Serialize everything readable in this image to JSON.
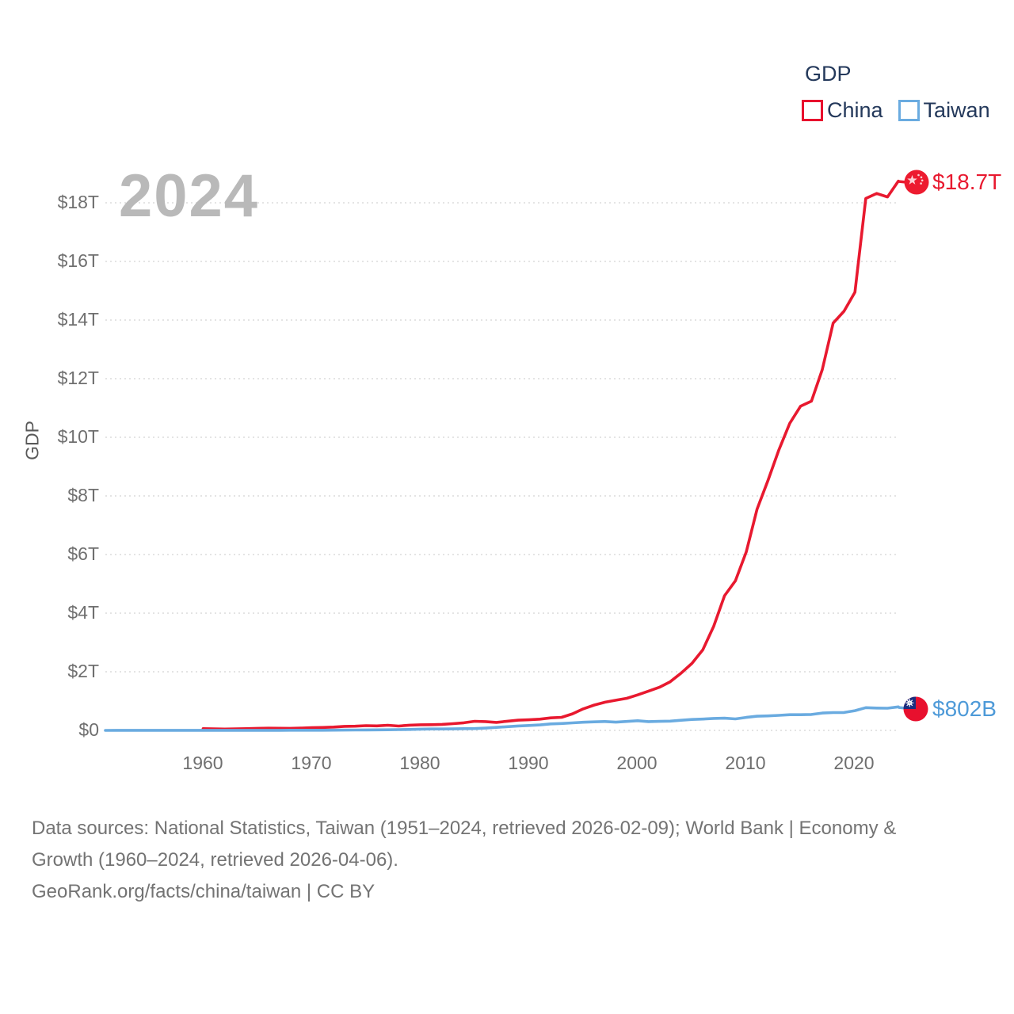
{
  "legend": {
    "title": "GDP",
    "items": [
      {
        "label": "China",
        "color": "#e8102d"
      },
      {
        "label": "Taiwan",
        "color": "#6aabe0"
      }
    ]
  },
  "watermark_year": "2024",
  "y_axis_title": "GDP",
  "footer": {
    "line1": "Data sources: National Statistics, Taiwan (1951–2024, retrieved 2026-02-09); World Bank | Economy &",
    "line2": "Growth (1960–2024, retrieved 2026-04-06).",
    "line3": "GeoRank.org/facts/china/taiwan | CC BY"
  },
  "chart_data": {
    "type": "line",
    "title": "GDP",
    "xlabel": "",
    "ylabel": "GDP",
    "grid": true,
    "legend_position": "top-right",
    "x_range_years": [
      1951,
      2024
    ],
    "y_range_usd_trillions": [
      0,
      18
    ],
    "y_tick_labels": [
      "$18T",
      "$16T",
      "$14T",
      "$12T",
      "$10T",
      "$8T",
      "$6T",
      "$4T",
      "$2T",
      "$0"
    ],
    "y_tick_values": [
      18,
      16,
      14,
      12,
      10,
      8,
      6,
      4,
      2,
      0
    ],
    "x_tick_labels": [
      "1960",
      "1970",
      "1980",
      "1990",
      "2000",
      "2010",
      "2020"
    ],
    "x_tick_values": [
      1960,
      1970,
      1980,
      1990,
      2000,
      2010,
      2020
    ],
    "series": [
      {
        "name": "China",
        "color": "#e8192f",
        "label_color": "#e8192f",
        "flag": "china-flag-icon",
        "end_label": "$18.7T",
        "start_year": 1960,
        "values_usd_trillions": [
          0.0597,
          0.0501,
          0.0472,
          0.0507,
          0.0597,
          0.0702,
          0.0759,
          0.0723,
          0.0704,
          0.0793,
          0.0926,
          0.099,
          0.1132,
          0.1386,
          0.1442,
          0.1634,
          0.1541,
          0.1749,
          0.1495,
          0.1783,
          0.1911,
          0.1959,
          0.205,
          0.2306,
          0.2599,
          0.3095,
          0.3009,
          0.2727,
          0.3123,
          0.3478,
          0.3609,
          0.3834,
          0.4269,
          0.4448,
          0.5642,
          0.7345,
          0.8637,
          0.9616,
          1.0294,
          1.094,
          1.2113,
          1.3394,
          1.4705,
          1.6602,
          1.9553,
          2.286,
          2.7522,
          3.5503,
          4.5943,
          5.1017,
          6.0871,
          7.5515,
          8.5323,
          9.5704,
          10.4756,
          11.0616,
          11.2333,
          12.3104,
          13.8948,
          14.2999,
          14.95,
          18.15,
          18.32,
          18.2,
          18.74
        ]
      },
      {
        "name": "Taiwan",
        "color": "#6aabe0",
        "label_color": "#4e9ad8",
        "flag": "taiwan-flag-icon",
        "end_label": "$802B",
        "start_year": 1951,
        "values_usd_trillions": [
          0.0012,
          0.0017,
          0.0018,
          0.0018,
          0.0019,
          0.0019,
          0.0021,
          0.0021,
          0.0021,
          0.0017,
          0.0019,
          0.002,
          0.0023,
          0.0026,
          0.0029,
          0.0032,
          0.0037,
          0.0043,
          0.005,
          0.0057,
          0.0067,
          0.008,
          0.0108,
          0.0146,
          0.0155,
          0.0185,
          0.0217,
          0.0268,
          0.0332,
          0.0423,
          0.0487,
          0.0486,
          0.0524,
          0.0598,
          0.0634,
          0.0773,
          0.1036,
          0.1262,
          0.1526,
          0.1666,
          0.1871,
          0.2229,
          0.2351,
          0.2562,
          0.2791,
          0.2925,
          0.3033,
          0.2802,
          0.3041,
          0.3307,
          0.2993,
          0.3074,
          0.3174,
          0.3469,
          0.3741,
          0.3865,
          0.4069,
          0.4159,
          0.3908,
          0.4443,
          0.484,
          0.4956,
          0.5129,
          0.5353,
          0.5345,
          0.5431,
          0.5907,
          0.6092,
          0.6114,
          0.6732,
          0.7758,
          0.762,
          0.7566,
          0.802
        ]
      }
    ]
  }
}
